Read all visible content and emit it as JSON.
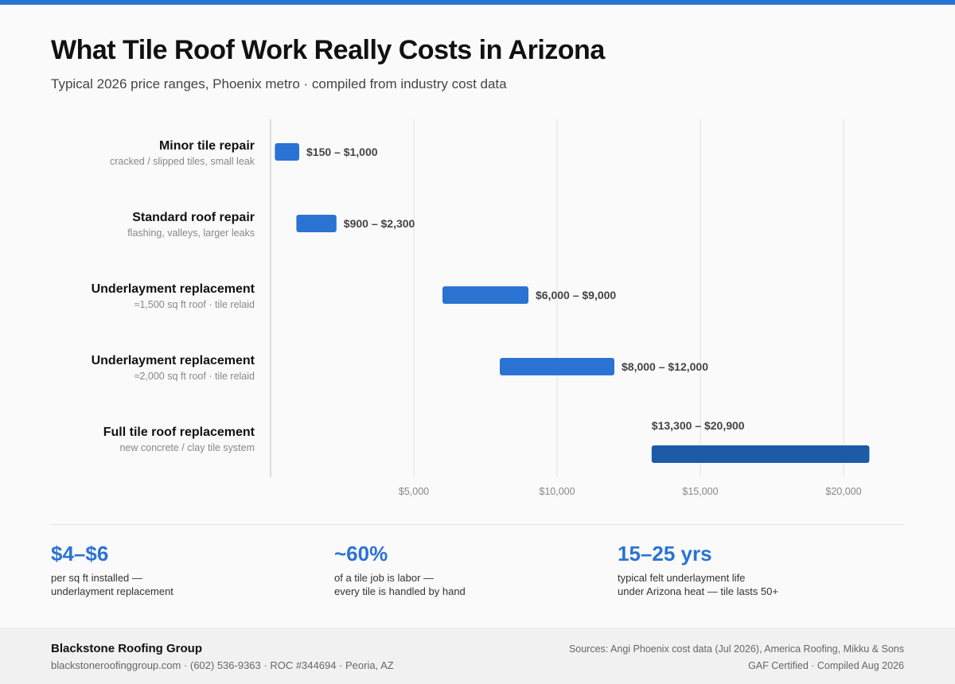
{
  "header": {
    "title": "What Tile Roof Work Really Costs in Arizona",
    "subtitle": "Typical 2026 price ranges, Phoenix metro · compiled from industry cost data"
  },
  "colors": {
    "accent": "#2a73d3",
    "accent_dark": "#1d5aa8",
    "topbar": "#2a73d3"
  },
  "chart_data": {
    "type": "bar",
    "orientation": "horizontal",
    "style": "floating range",
    "title": "",
    "xlabel": "",
    "ylabel": "",
    "xlim": [
      0,
      22500
    ],
    "x_ticks": [
      5000,
      10000,
      15000,
      20000
    ],
    "x_tick_labels": [
      "$5,000",
      "$10,000",
      "$15,000",
      "$20,000"
    ],
    "grid": "vertical",
    "categories": [
      "Minor tile repair",
      "Standard roof repair",
      "Underlayment replacement",
      "Underlayment replacement",
      "Full tile roof replacement"
    ],
    "category_notes": [
      "cracked / slipped tiles, small leak",
      "flashing, valleys, larger leaks",
      "≈1,500 sq ft roof · tile relaid",
      "≈2,000 sq ft roof · tile relaid",
      "new concrete / clay tile system"
    ],
    "ranges": [
      [
        150,
        1000
      ],
      [
        900,
        2300
      ],
      [
        6000,
        9000
      ],
      [
        8000,
        12000
      ],
      [
        13300,
        20900
      ]
    ],
    "data_labels": [
      "$150 – $1,000",
      "$900 – $2,300",
      "$6,000 – $9,000",
      "$8,000 – $12,000",
      "$13,300 – $20,900"
    ],
    "highlight_index": 4
  },
  "stats": [
    {
      "value": "$4–$6",
      "desc": "per sq ft installed —\nunderlayment replacement"
    },
    {
      "value": "~60%",
      "desc": "of a tile job is labor —\nevery tile is handled by hand"
    },
    {
      "value": "15–25 yrs",
      "desc": "typical felt underlayment life\nunder Arizona heat — tile lasts 50+"
    }
  ],
  "footer": {
    "company": "Blackstone Roofing Group",
    "contact": "blackstoneroofinggroup.com · (602) 536-9363 · ROC #344694 · Peoria, AZ",
    "sources": "Sources: Angi Phoenix cost data (Jul 2026), America Roofing, Mikku & Sons",
    "certification": "GAF Certified · Compiled Aug 2026"
  }
}
